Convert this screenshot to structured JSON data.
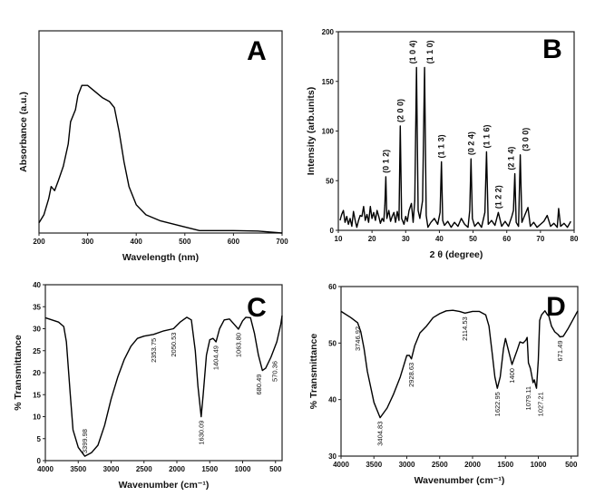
{
  "chart_data": [
    {
      "panel": "A",
      "type": "line",
      "xlabel": "Wavelength (nm)",
      "ylabel": "Absorbance (a.u.)",
      "xlim": [
        200,
        700
      ],
      "ylim": [
        0,
        1
      ],
      "xticks": [
        200,
        300,
        400,
        500,
        600,
        700
      ],
      "yticks": [],
      "grid": false,
      "x": [
        200,
        210,
        220,
        225,
        232,
        240,
        250,
        260,
        265,
        275,
        280,
        288,
        300,
        310,
        320,
        330,
        345,
        355,
        365,
        375,
        385,
        400,
        420,
        450,
        500,
        530,
        600,
        650,
        700
      ],
      "y": [
        0.05,
        0.09,
        0.17,
        0.23,
        0.21,
        0.26,
        0.33,
        0.44,
        0.55,
        0.61,
        0.68,
        0.73,
        0.73,
        0.71,
        0.69,
        0.67,
        0.65,
        0.62,
        0.5,
        0.35,
        0.23,
        0.14,
        0.09,
        0.06,
        0.03,
        0.012,
        0.012,
        0.01,
        0.0
      ]
    },
    {
      "panel": "B",
      "type": "line",
      "xlabel": "2 θ (degree)",
      "ylabel": "Intensity (arb.units)",
      "xlim": [
        10,
        80
      ],
      "ylim": [
        0,
        200
      ],
      "xticks": [
        10,
        20,
        30,
        40,
        50,
        60,
        70,
        80
      ],
      "yticks": [
        0,
        50,
        100,
        150,
        200
      ],
      "grid": false,
      "x": [
        10.5,
        11,
        11.5,
        12,
        12.5,
        13,
        13.5,
        14,
        14.5,
        15,
        15.5,
        16,
        16.5,
        17,
        17.5,
        18,
        18.5,
        19,
        19.5,
        20,
        20.5,
        21,
        21.5,
        22,
        22.5,
        23,
        23.5,
        23.8,
        24.1,
        24.4,
        25,
        25.5,
        26,
        26.5,
        27,
        27.5,
        28,
        28.4,
        28.8,
        29.5,
        30,
        30.5,
        31,
        31.7,
        32.2,
        32.7,
        33.2,
        33.7,
        34.2,
        35,
        35.6,
        36.1,
        36.6,
        37.5,
        38.5,
        39.5,
        40.2,
        40.6,
        41,
        41.5,
        42.5,
        43.5,
        44.5,
        45.5,
        46.5,
        47.5,
        48.5,
        49,
        49.4,
        49.8,
        50.5,
        51.5,
        52.5,
        53.5,
        54,
        54.5,
        55.5,
        56.5,
        57.5,
        58.5,
        59.5,
        60.5,
        61.5,
        62,
        62.4,
        62.8,
        63.5,
        64,
        64.5,
        65.2,
        66.3,
        67,
        68,
        69,
        70,
        71,
        72,
        73,
        74,
        75,
        75.4,
        76,
        77,
        78,
        79
      ],
      "y": [
        10,
        16,
        20,
        8,
        14,
        6,
        12,
        4,
        19,
        10,
        3,
        10,
        15,
        14,
        24,
        10,
        16,
        8,
        24,
        12,
        18,
        10,
        20,
        14,
        7,
        12,
        9,
        25,
        54,
        12,
        20,
        9,
        14,
        18,
        8,
        19,
        10,
        105,
        12,
        6,
        14,
        9,
        20,
        27,
        8,
        30,
        164,
        20,
        12,
        30,
        164,
        15,
        3,
        8,
        12,
        6,
        18,
        69,
        10,
        5,
        9,
        3,
        8,
        4,
        12,
        6,
        3,
        20,
        72,
        12,
        4,
        8,
        3,
        18,
        79,
        6,
        10,
        5,
        18,
        4,
        9,
        4,
        14,
        20,
        57,
        8,
        4,
        76,
        8,
        14,
        23,
        4,
        8,
        3,
        6,
        9,
        15,
        4,
        7,
        3,
        22,
        4,
        7,
        3,
        9
      ]
    },
    {
      "panel": "C",
      "type": "line",
      "xlabel": "Wavenumber (cm⁻¹)",
      "ylabel": "% Transmittance",
      "xlim": [
        4000,
        400
      ],
      "ylim": [
        0,
        40
      ],
      "xticks": [
        4000,
        3500,
        3000,
        2500,
        2000,
        1500,
        1000,
        500
      ],
      "yticks": [
        0,
        5,
        10,
        15,
        20,
        25,
        30,
        35,
        40
      ],
      "grid": false,
      "x": [
        4000,
        3800,
        3720,
        3680,
        3620,
        3580,
        3500,
        3400,
        3300,
        3200,
        3100,
        3000,
        2900,
        2800,
        2700,
        2600,
        2500,
        2354,
        2200,
        2051,
        1950,
        1850,
        1780,
        1720,
        1680,
        1630,
        1600,
        1550,
        1500,
        1450,
        1404,
        1350,
        1280,
        1200,
        1130,
        1064,
        1000,
        950,
        880,
        820,
        760,
        700,
        650,
        570,
        480,
        420,
        400
      ],
      "y": [
        32.5,
        31.5,
        30.5,
        27,
        15,
        7,
        3,
        1,
        1.8,
        3.5,
        8,
        14,
        19,
        23,
        26,
        27.8,
        28.3,
        28.7,
        29.5,
        30,
        31.5,
        32.6,
        32,
        25,
        17,
        10,
        15,
        24,
        27.5,
        27.8,
        27,
        30,
        32,
        32.2,
        31,
        29.9,
        31.8,
        32.6,
        32.5,
        29,
        24,
        20.5,
        21,
        23.5,
        27,
        31,
        33
      ],
      "annotations": [
        {
          "text": "3399.98",
          "x": 3400,
          "y": 1,
          "placement": "above"
        },
        {
          "text": "2353.75",
          "x": 2354,
          "y": 28.7,
          "placement": "below"
        },
        {
          "text": "2050.53",
          "x": 2051,
          "y": 30,
          "placement": "below"
        },
        {
          "text": "1630.09",
          "x": 1630,
          "y": 10,
          "placement": "below"
        },
        {
          "text": "1404.49",
          "x": 1404,
          "y": 27,
          "placement": "below"
        },
        {
          "text": "1063.80",
          "x": 1064,
          "y": 29.9,
          "placement": "below"
        },
        {
          "text": "680.49",
          "x": 700,
          "y": 20.5,
          "placement": "below"
        },
        {
          "text": "570.36",
          "x": 570,
          "y": 23.5,
          "placement": "below"
        }
      ]
    },
    {
      "panel": "D",
      "type": "line",
      "xlabel": "Wavenumber (cm⁻¹)",
      "ylabel": "% Transmittance",
      "xlim": [
        4000,
        400
      ],
      "ylim": [
        30,
        60
      ],
      "xticks": [
        4000,
        3500,
        3000,
        2500,
        2000,
        1500,
        1000,
        500
      ],
      "yticks": [
        30,
        40,
        50,
        60
      ],
      "grid": false,
      "x": [
        4000,
        3850,
        3747,
        3700,
        3650,
        3600,
        3500,
        3405,
        3300,
        3200,
        3100,
        3000,
        2960,
        2929,
        2880,
        2800,
        2700,
        2600,
        2500,
        2400,
        2300,
        2200,
        2115,
        2000,
        1900,
        1800,
        1750,
        1700,
        1660,
        1623,
        1580,
        1530,
        1500,
        1460,
        1400,
        1360,
        1320,
        1280,
        1230,
        1190,
        1170,
        1150,
        1120,
        1080,
        1060,
        1040,
        1027,
        1000,
        980,
        950,
        900,
        860,
        840,
        800,
        750,
        700,
        671,
        620,
        550,
        480,
        400
      ],
      "y": [
        55.6,
        54.5,
        53.6,
        52,
        49,
        45,
        39.5,
        36.8,
        38.5,
        41,
        44,
        47.8,
        47.8,
        47.2,
        49.5,
        51.8,
        53,
        54.5,
        55.2,
        55.7,
        55.8,
        55.6,
        55.3,
        55.6,
        55.6,
        55,
        53,
        48,
        44,
        42,
        44,
        49,
        50.8,
        49,
        46.2,
        47.5,
        48.8,
        50.2,
        50,
        50.5,
        51,
        46.5,
        45.5,
        43,
        43.5,
        42.5,
        42,
        47,
        54,
        55,
        55.7,
        55,
        54.8,
        53,
        52,
        51.5,
        51.1,
        51.2,
        52.5,
        54,
        55.7
      ],
      "annotations": [
        {
          "text": "3746.92",
          "x": 3747,
          "y": 53.6,
          "placement": "below"
        },
        {
          "text": "3404.83",
          "x": 3405,
          "y": 36.8,
          "placement": "below"
        },
        {
          "text": "2928.63",
          "x": 2929,
          "y": 47.2,
          "placement": "below"
        },
        {
          "text": "2114.53",
          "x": 2115,
          "y": 55.3,
          "placement": "below"
        },
        {
          "text": "1622.95",
          "x": 1623,
          "y": 42,
          "placement": "below"
        },
        {
          "text": "1400",
          "x": 1400,
          "y": 46.2,
          "placement": "below"
        },
        {
          "text": "1079.11",
          "x": 1079,
          "y": 43,
          "placement": "below"
        },
        {
          "text": "1027.21",
          "x": 1027,
          "y": 42,
          "placement": "below"
        },
        {
          "text": "671.49",
          "x": 671,
          "y": 51.1,
          "placement": "below"
        }
      ]
    }
  ],
  "xrd_peak_labels": [
    {
      "text": "(0 1 2)",
      "x": 24.1,
      "y": 54
    },
    {
      "text": "(2 0 0)",
      "x": 28.4,
      "y": 105
    },
    {
      "text": "(1 0 4)",
      "x": 33.2,
      "y": 164
    },
    {
      "text": "(1 1 0)",
      "x": 35.6,
      "y": 164
    },
    {
      "text": "(1 1 3)",
      "x": 40.6,
      "y": 69
    },
    {
      "text": "(0 2 4)",
      "x": 49.4,
      "y": 72
    },
    {
      "text": "(1 1 6)",
      "x": 54.0,
      "y": 79
    },
    {
      "text": "(1 2 2)",
      "x": 57.5,
      "y": 18
    },
    {
      "text": "(2 1 4)",
      "x": 62.4,
      "y": 57
    },
    {
      "text": "(3 0 0)",
      "x": 64.0,
      "y": 76
    }
  ],
  "colors": {
    "line": "#000000",
    "axis": "#222222"
  }
}
